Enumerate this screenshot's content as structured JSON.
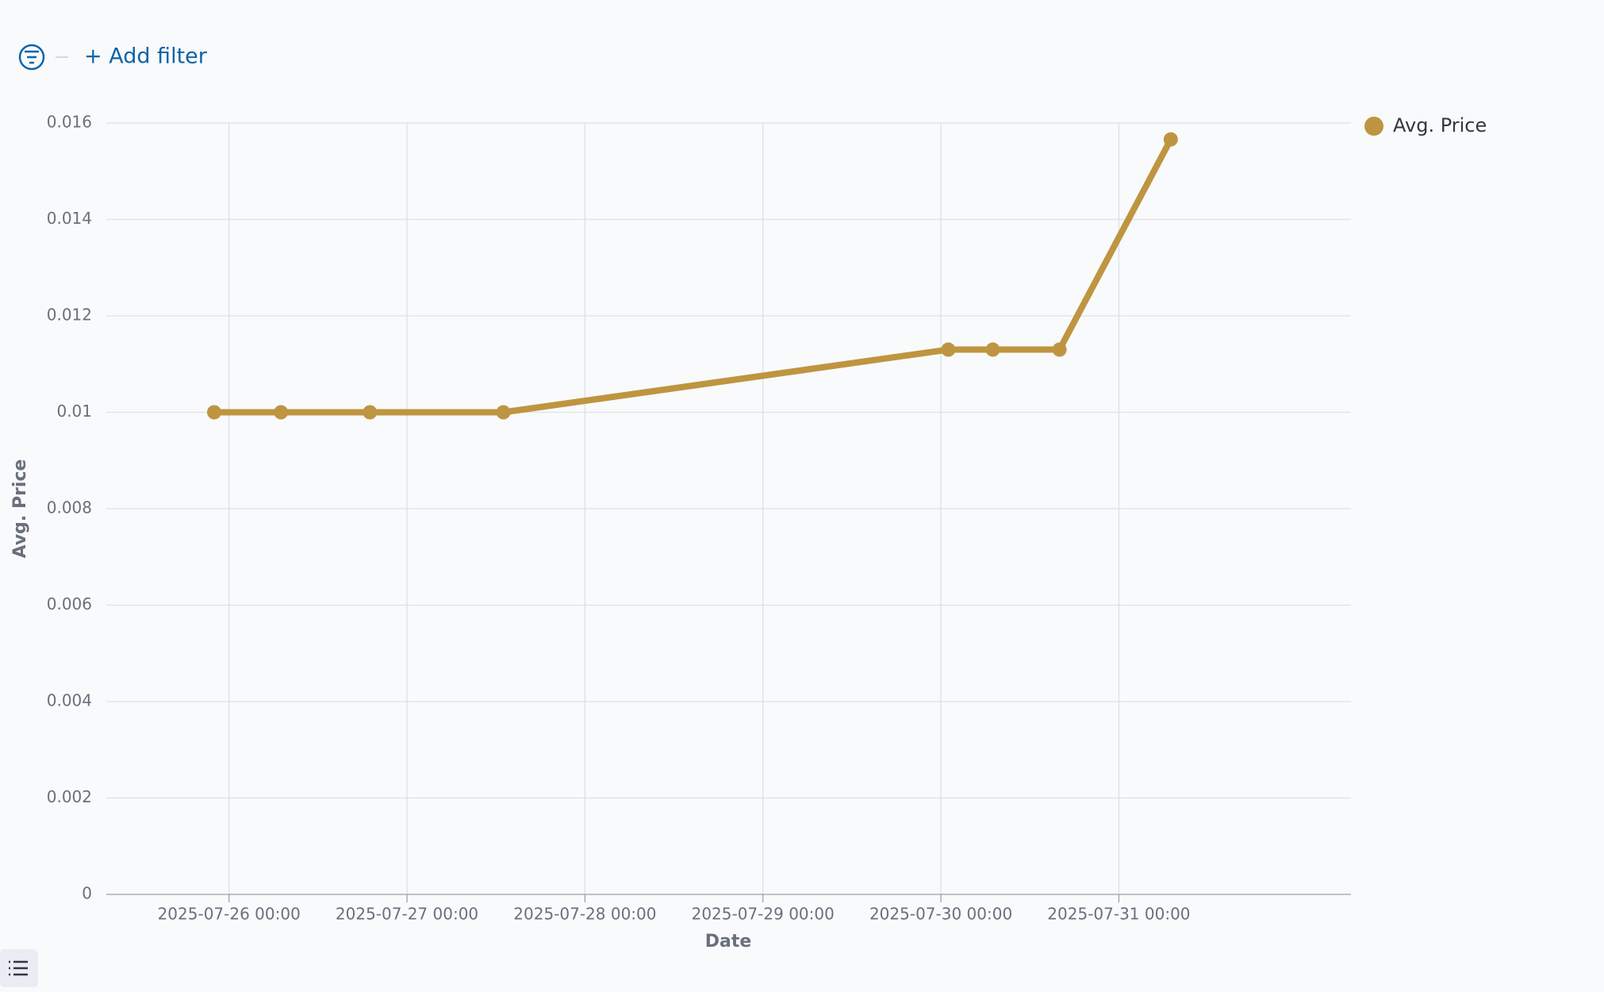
{
  "filter_bar": {
    "add_filter": "+ Add filter"
  },
  "chart_data": {
    "type": "line",
    "x_label": "Date",
    "y_label": "Avg. Price",
    "x": [
      "2025-07-25 22:00",
      "2025-07-26 07:00",
      "2025-07-26 19:00",
      "2025-07-27 13:00",
      "2025-07-30 01:00",
      "2025-07-30 07:00",
      "2025-07-30 16:00",
      "2025-07-31 07:00"
    ],
    "series": [
      {
        "name": "Avg. Price",
        "color": "#be9540",
        "values": [
          0.01,
          0.01,
          0.01,
          0.01,
          0.0113,
          0.0113,
          0.0113,
          0.01566
        ]
      }
    ],
    "xlim": [
      "2025-07-25 07:27",
      "2025-08-01 07:18"
    ],
    "xticks": [
      "2025-07-26 00:00",
      "2025-07-27 00:00",
      "2025-07-28 00:00",
      "2025-07-29 00:00",
      "2025-07-30 00:00",
      "2025-07-31 00:00"
    ],
    "ylim": [
      0,
      0.016
    ],
    "yticks": [
      0,
      0.002,
      0.004,
      0.006,
      0.008,
      0.01,
      0.012,
      0.014,
      0.016
    ],
    "grid": true,
    "legend": "top-right"
  }
}
